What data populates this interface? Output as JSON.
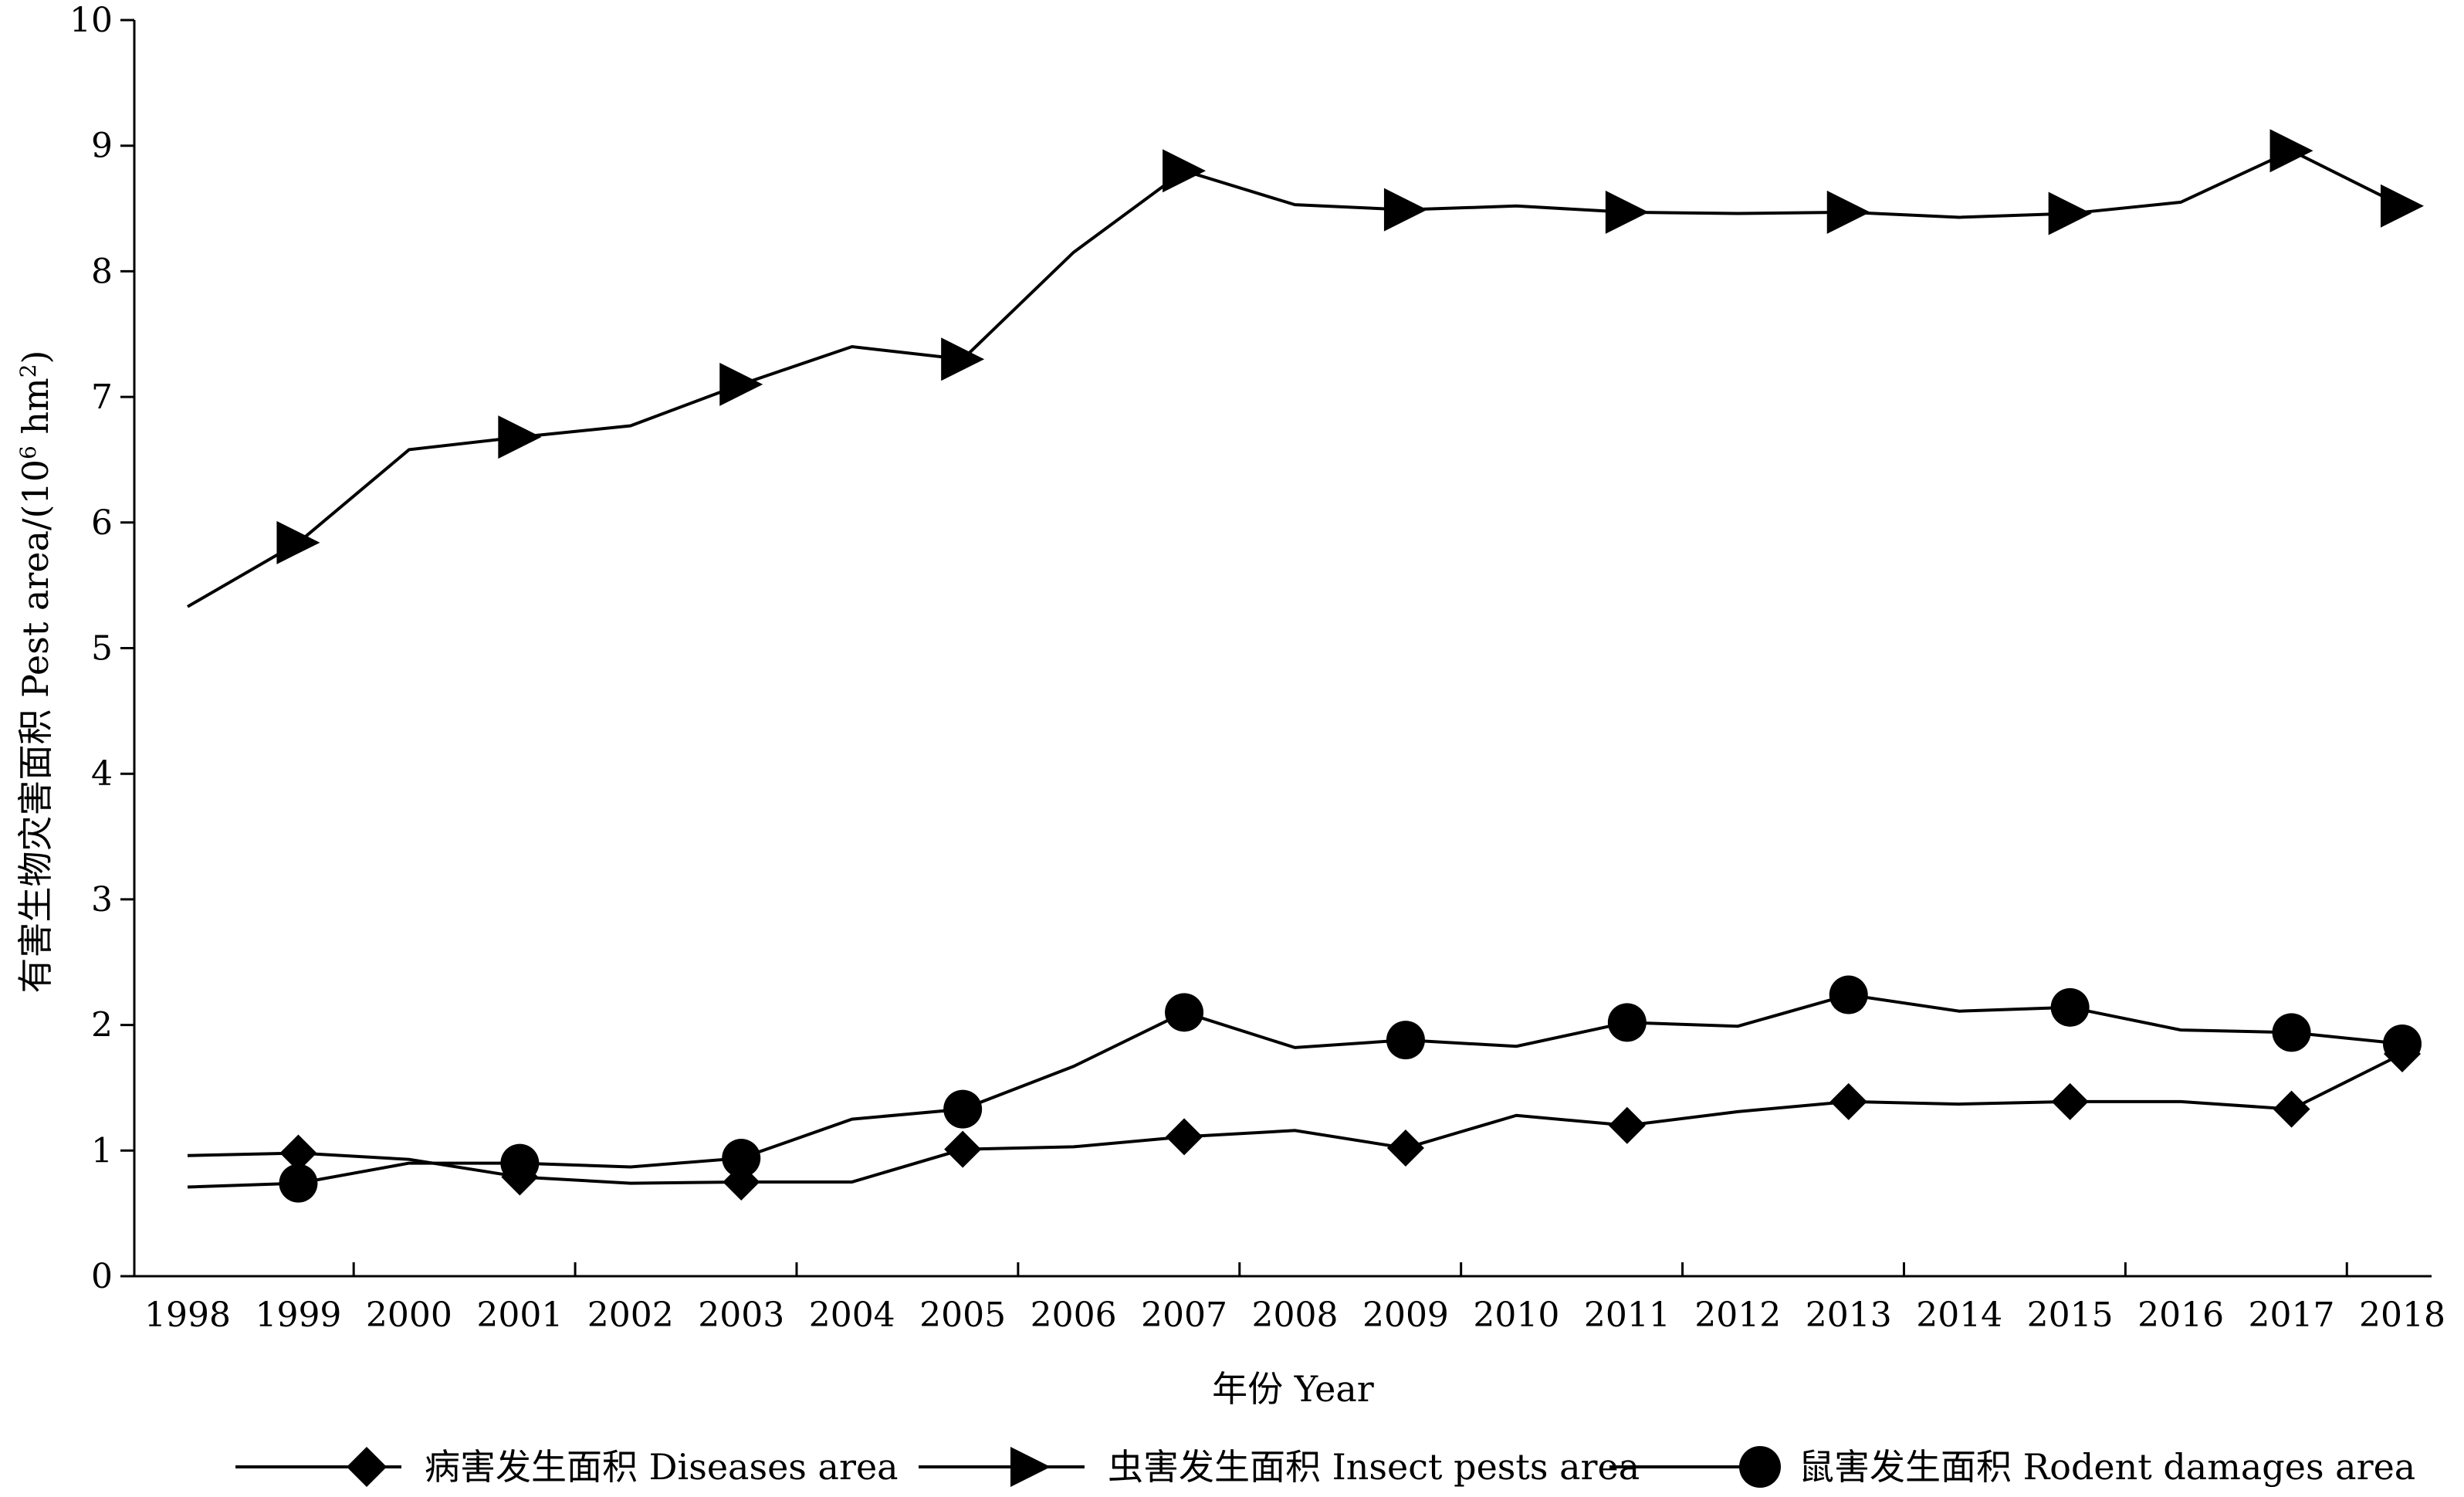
{
  "chart_data": {
    "type": "line",
    "title": "",
    "xlabel": "年份 Year",
    "ylabel": "有害生物灾害面积 Pest area/(10⁶ hm²)",
    "ylabel_parts": {
      "main": "有害生物灾害面积 Pest area/(10",
      "exp1": "6",
      "mid": " hm",
      "exp2": "2",
      "end": ")"
    },
    "ylim": [
      0,
      10
    ],
    "yticks": [
      "0",
      "1",
      "2",
      "3",
      "4",
      "5",
      "6",
      "7",
      "8",
      "9",
      "10"
    ],
    "categories": [
      "1998",
      "1999",
      "2000",
      "2001",
      "2002",
      "2003",
      "2004",
      "2005",
      "2006",
      "2007",
      "2008",
      "2009",
      "2010",
      "2011",
      "2012",
      "2013",
      "2014",
      "2015",
      "2016",
      "2017",
      "2018"
    ],
    "grid": false,
    "legend_position": "bottom",
    "series": [
      {
        "name": "病害发生面积 Diseases area",
        "marker": "diamond",
        "color": "#000000",
        "values": [
          0.96,
          0.98,
          0.93,
          0.79,
          0.74,
          0.75,
          0.75,
          1.01,
          1.03,
          1.11,
          1.16,
          1.02,
          1.28,
          1.2,
          1.31,
          1.39,
          1.37,
          1.39,
          1.39,
          1.33,
          1.77
        ]
      },
      {
        "name": "虫害发生面积 Insect pests area",
        "marker": "triangle-right",
        "color": "#000000",
        "values": [
          5.33,
          5.84,
          6.58,
          6.68,
          6.77,
          7.1,
          7.4,
          7.3,
          8.15,
          8.8,
          8.53,
          8.49,
          8.52,
          8.47,
          8.46,
          8.47,
          8.43,
          8.46,
          8.55,
          8.96,
          8.52
        ]
      },
      {
        "name": "鼠害发生面积 Rodent damages area",
        "marker": "circle",
        "color": "#000000",
        "values": [
          0.71,
          0.74,
          0.9,
          0.9,
          0.87,
          0.94,
          1.25,
          1.33,
          1.67,
          2.1,
          1.82,
          1.88,
          1.83,
          2.02,
          1.99,
          2.24,
          2.11,
          2.14,
          1.96,
          1.94,
          1.85
        ]
      }
    ]
  }
}
